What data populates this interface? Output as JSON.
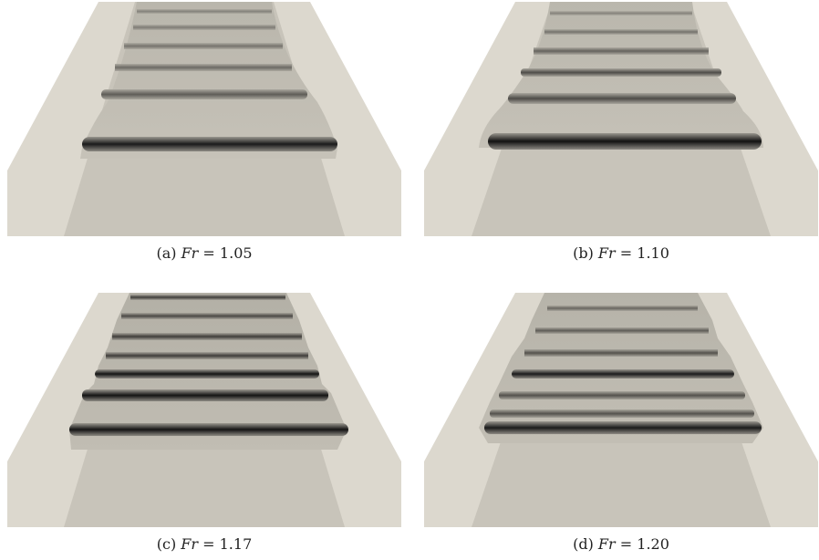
{
  "panels": [
    {
      "id": "a",
      "label": "(a)",
      "symbol": "Fr",
      "equals": "=",
      "value": "1.05"
    },
    {
      "id": "b",
      "label": "(b)",
      "symbol": "Fr",
      "equals": "=",
      "value": "1.10"
    },
    {
      "id": "c",
      "label": "(c)",
      "symbol": "Fr",
      "equals": "=",
      "value": "1.17"
    },
    {
      "id": "d",
      "label": "(d)",
      "symbol": "Fr",
      "equals": "=",
      "value": "1.20"
    }
  ],
  "colors": {
    "bank_light": "#dcd8ce",
    "bank_mid": "#cfcbc0",
    "bed": "#c5c1b7",
    "water": "#bdb9ae",
    "wave_dark": "#151515"
  }
}
